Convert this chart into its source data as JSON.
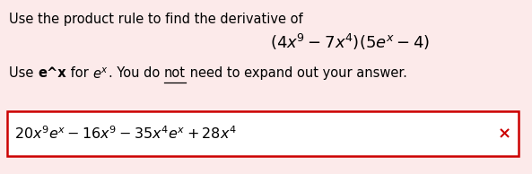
{
  "bg_color": "#fceaea",
  "line1": "Use the product rule to find the derivative of",
  "formula": "$(4x^9 - 7x^4)(5e^x - 4)$",
  "answer": "$20x^9e^x - 16x^9 - 35x^4e^x + 28x^4$",
  "answer_box_color": "#cc0000",
  "answer_text_color": "#000000",
  "x_mark_color": "#cc0000",
  "font_size_main": 10.5,
  "font_size_formula": 13,
  "font_size_answer": 11.5
}
